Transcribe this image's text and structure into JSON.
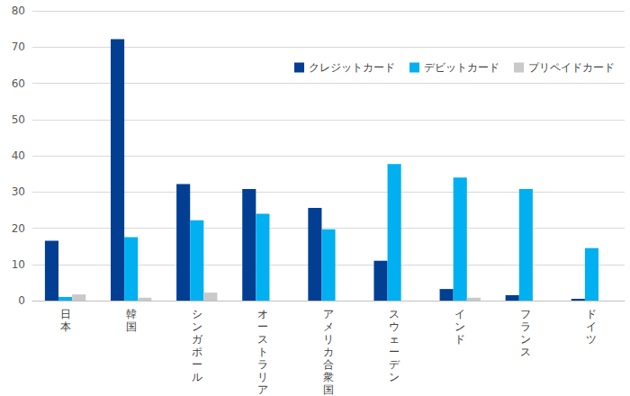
{
  "chart_data": {
    "type": "bar",
    "categories": [
      "日本",
      "韓国",
      "シンガポール",
      "オーストラリア",
      "アメリカ合衆国",
      "スウェーデン",
      "インド",
      "フランス",
      "ドイツ"
    ],
    "series": [
      {
        "name": "クレジットカード",
        "color": "#023f92",
        "values": [
          16.5,
          72.2,
          32.2,
          30.8,
          25.6,
          11,
          3.2,
          1.5,
          0.5
        ]
      },
      {
        "name": "デビットカード",
        "color": "#00b0f0",
        "values": [
          1,
          17.5,
          22.2,
          24,
          19.7,
          37.7,
          34,
          30.8,
          14.5
        ]
      },
      {
        "name": "プリペイドカード",
        "color": "#c9c9c9",
        "values": [
          1.7,
          0.8,
          2.2,
          0,
          0,
          0,
          0.8,
          0,
          0
        ]
      }
    ],
    "ylim": [
      0,
      80
    ],
    "yticks": [
      0,
      10,
      20,
      30,
      40,
      50,
      60,
      70,
      80
    ],
    "grid": true,
    "legend": "top-right"
  }
}
